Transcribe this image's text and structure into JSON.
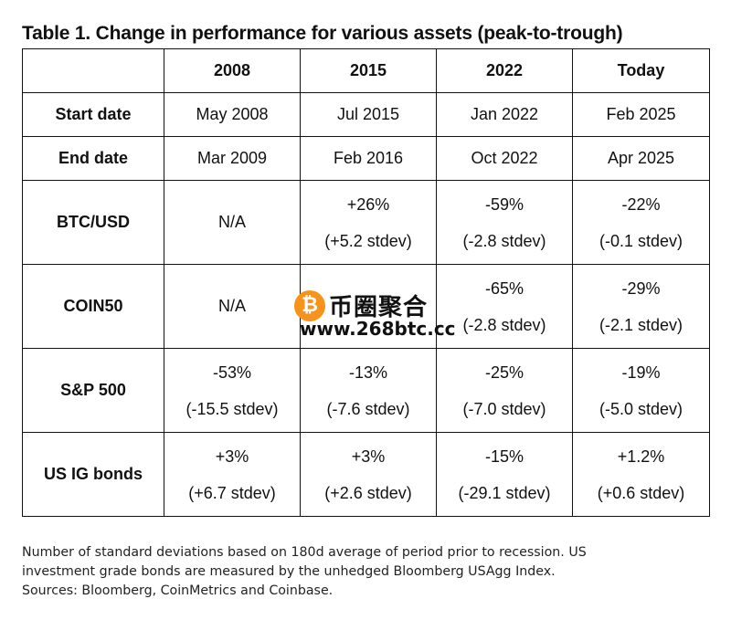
{
  "title": "Table 1. Change in performance for various assets (peak-to-trough)",
  "table": {
    "headers": [
      "",
      "2008",
      "2015",
      "2022",
      "Today"
    ],
    "rows": [
      {
        "label": "Start date",
        "cells": [
          [
            "May 2008"
          ],
          [
            "Jul 2015"
          ],
          [
            "Jan 2022"
          ],
          [
            "Feb 2025"
          ]
        ]
      },
      {
        "label": "End date",
        "cells": [
          [
            "Mar 2009"
          ],
          [
            "Feb 2016"
          ],
          [
            "Oct 2022"
          ],
          [
            "Apr 2025"
          ]
        ]
      },
      {
        "label": "BTC/USD",
        "cells": [
          [
            "N/A"
          ],
          [
            "+26%",
            "(+5.2 stdev)"
          ],
          [
            "-59%",
            "(-2.8 stdev)"
          ],
          [
            "-22%",
            "(-0.1 stdev)"
          ]
        ]
      },
      {
        "label": "COIN50",
        "cells": [
          [
            "N/A"
          ],
          [
            ""
          ],
          [
            "-65%",
            "(-2.8 stdev)"
          ],
          [
            "-29%",
            "(-2.1 stdev)"
          ]
        ]
      },
      {
        "label": "S&P 500",
        "cells": [
          [
            "-53%",
            "(-15.5 stdev)"
          ],
          [
            "-13%",
            "(-7.6 stdev)"
          ],
          [
            "-25%",
            "(-7.0 stdev)"
          ],
          [
            "-19%",
            "(-5.0 stdev)"
          ]
        ]
      },
      {
        "label": "US IG bonds",
        "cells": [
          [
            "+3%",
            "(+6.7 stdev)"
          ],
          [
            "+3%",
            "(+2.6 stdev)"
          ],
          [
            "-15%",
            "(-29.1 stdev)"
          ],
          [
            "+1.2%",
            "(+0.6 stdev)"
          ]
        ]
      }
    ]
  },
  "footnote": {
    "lines": [
      "Number of standard deviations based on 180d average of period prior to recession. US",
      "investment grade bonds are measured by the unhedged Bloomberg USAgg Index.",
      "Sources: Bloomberg, CoinMetrics and Coinbase."
    ]
  },
  "watermark": {
    "coin_symbol": "₿",
    "cn_text": "币圈聚合",
    "url": "www.268btc.cc",
    "coin_color": "#f7931a"
  }
}
